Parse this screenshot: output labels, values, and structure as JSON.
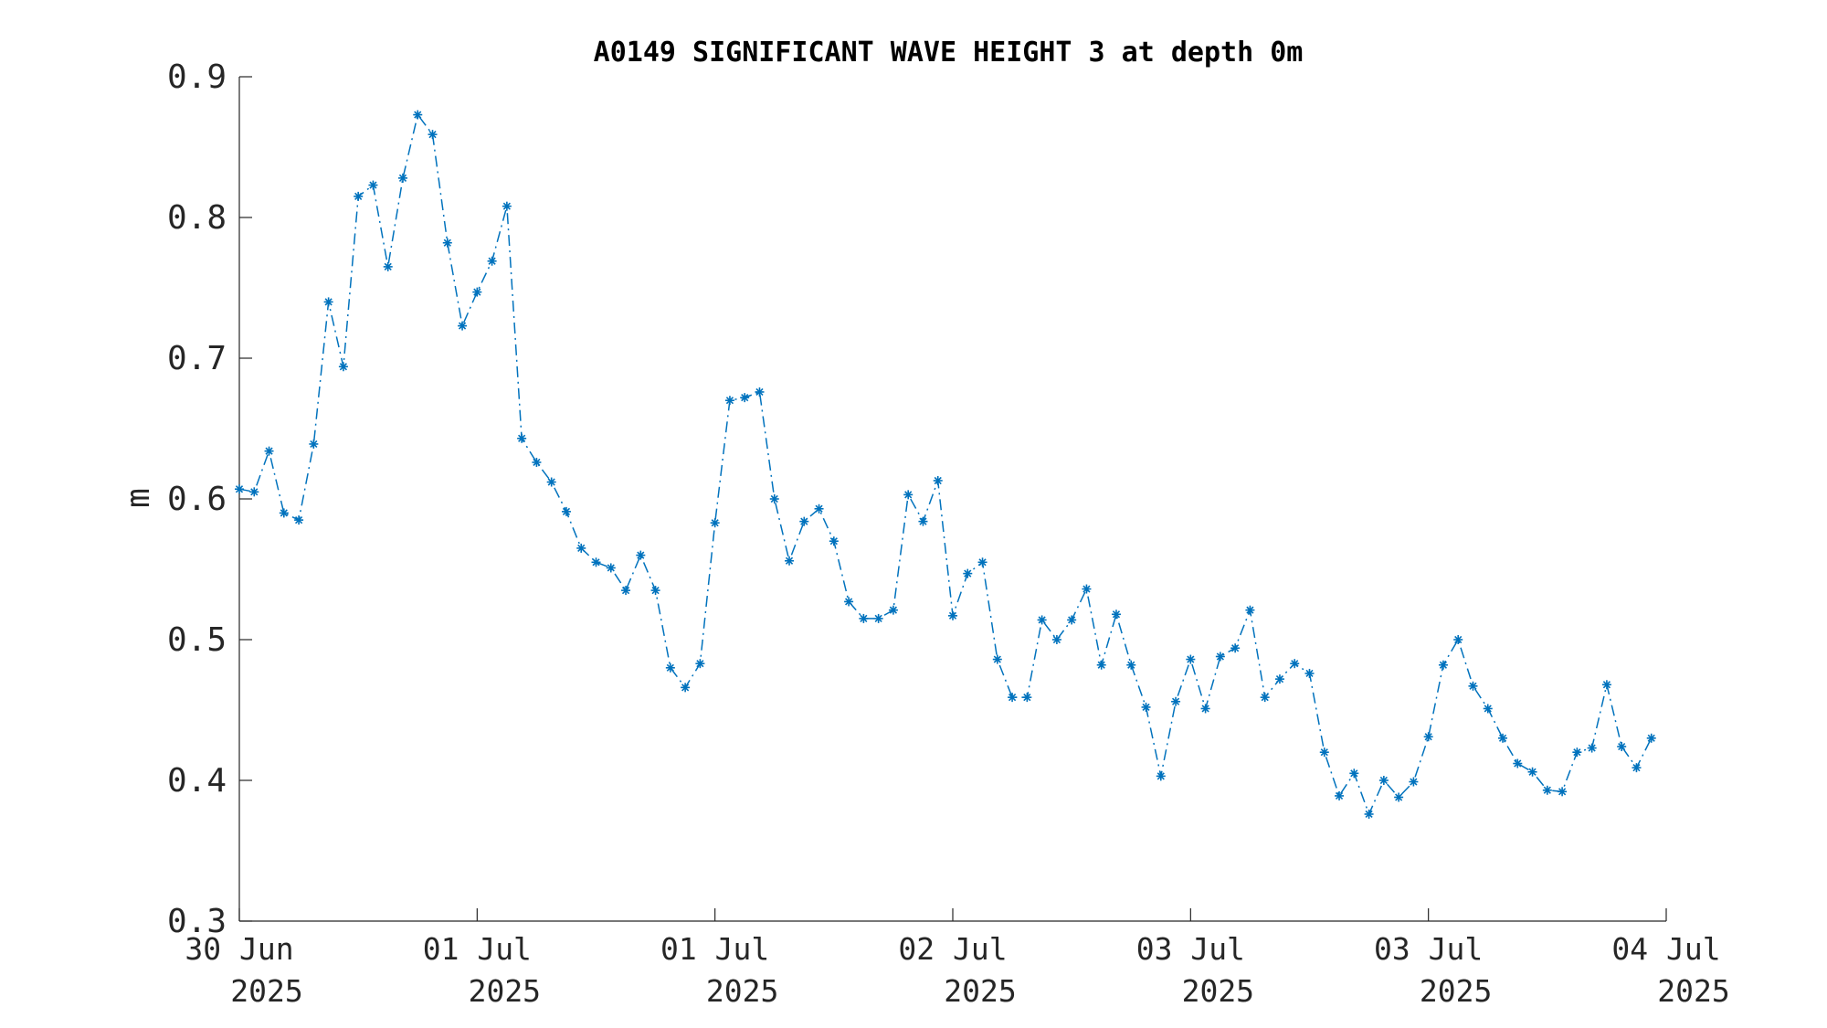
{
  "chart_data": {
    "type": "line",
    "title": "A0149 SIGNIFICANT WAVE HEIGHT 3 at depth 0m",
    "xlabel": "",
    "ylabel": "m",
    "ylim": [
      0.3,
      0.9
    ],
    "yticks": [
      "0.3",
      "0.4",
      "0.5",
      "0.6",
      "0.7",
      "0.8",
      "0.9"
    ],
    "xlim": [
      "2025-06-30 00:00",
      "2025-07-04 00:00"
    ],
    "xticks": [
      {
        "line1": "30 Jun",
        "line2": "2025"
      },
      {
        "line1": "01 Jul",
        "line2": "2025"
      },
      {
        "line1": "01 Jul",
        "line2": "2025"
      },
      {
        "line1": "02 Jul",
        "line2": "2025"
      },
      {
        "line1": "03 Jul",
        "line2": "2025"
      },
      {
        "line1": "03 Jul",
        "line2": "2025"
      },
      {
        "line1": "04 Jul",
        "line2": "2025"
      }
    ],
    "grid": false,
    "line_style": "dash-dot",
    "marker": "asterisk",
    "color": "#0072BD",
    "series": [
      {
        "interval_hours": 1,
        "start": "2025-06-30 00:00",
        "values": [
          0.607,
          0.605,
          0.634,
          0.59,
          0.585,
          0.639,
          0.74,
          0.694,
          0.815,
          0.823,
          0.765,
          0.828,
          0.873,
          0.859,
          0.782,
          0.723,
          0.747,
          0.769,
          0.808,
          0.643,
          0.626,
          0.612,
          0.591,
          0.565,
          0.555,
          0.551,
          0.535,
          0.56,
          0.535,
          0.48,
          0.466,
          0.483,
          0.583,
          0.67,
          0.672,
          0.676,
          0.6,
          0.556,
          0.584,
          0.593,
          0.57,
          0.527,
          0.515,
          0.515,
          0.521,
          0.603,
          0.584,
          0.613,
          0.517,
          0.547,
          0.555,
          0.486,
          0.459,
          0.459,
          0.514,
          0.5,
          0.514,
          0.536,
          0.482,
          0.518,
          0.482,
          0.452,
          0.403,
          0.456,
          0.486,
          0.451,
          0.488,
          0.494,
          0.521,
          0.459,
          0.472,
          0.483,
          0.476,
          0.42,
          0.389,
          0.405,
          0.376,
          0.4,
          0.388,
          0.399,
          0.431,
          0.482,
          0.5,
          0.467,
          0.451,
          0.43,
          0.412,
          0.406,
          0.393,
          0.392,
          0.42,
          0.423,
          0.468,
          0.424,
          0.409,
          0.43
        ]
      }
    ]
  }
}
